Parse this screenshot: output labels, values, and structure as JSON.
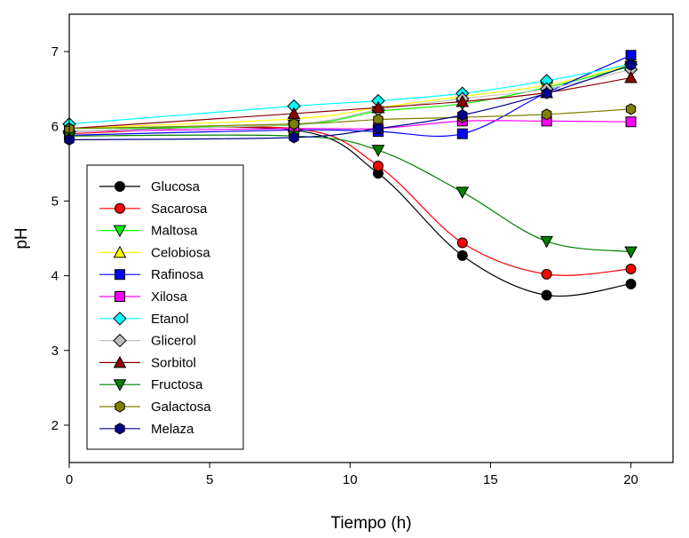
{
  "chart_data": {
    "type": "line",
    "xlabel": "Tiempo (h)",
    "ylabel": "pH",
    "xlim": [
      0,
      21.5
    ],
    "ylim": [
      1.5,
      7.5
    ],
    "xticks": [
      0,
      5,
      10,
      15,
      20
    ],
    "yticks": [
      2,
      3,
      4,
      5,
      6,
      7
    ],
    "grid": false,
    "legend_position": "bottom-left",
    "x": [
      0,
      8,
      11,
      14,
      17,
      20
    ],
    "series": [
      {
        "name": "Glucosa",
        "color": "#000000",
        "marker": "circle",
        "values": [
          5.93,
          5.95,
          5.37,
          4.27,
          3.74,
          3.89
        ]
      },
      {
        "name": "Sacarosa",
        "color": "#ff0000",
        "marker": "circle",
        "values": [
          5.9,
          5.97,
          5.47,
          4.44,
          4.02,
          4.09
        ]
      },
      {
        "name": "Maltosa",
        "color": "#00ff00",
        "marker": "triangle-down",
        "values": [
          5.97,
          6.02,
          6.2,
          6.3,
          6.52,
          6.8
        ]
      },
      {
        "name": "Celobiosa",
        "color": "#ffff00",
        "marker": "triangle-up",
        "values": [
          5.97,
          6.1,
          6.25,
          6.4,
          6.55,
          6.82
        ]
      },
      {
        "name": "Rafinosa",
        "color": "#0000ff",
        "marker": "square",
        "values": [
          5.88,
          5.95,
          5.93,
          5.9,
          6.45,
          6.95
        ]
      },
      {
        "name": "Xilosa",
        "color": "#ff00ff",
        "marker": "square",
        "values": [
          5.93,
          5.97,
          5.97,
          6.07,
          6.07,
          6.06
        ]
      },
      {
        "name": "Etanol",
        "color": "#00ffff",
        "marker": "diamond",
        "values": [
          6.03,
          6.27,
          6.34,
          6.44,
          6.61,
          6.83
        ]
      },
      {
        "name": "Glicerol",
        "color": "#c0c0c0",
        "marker": "diamond",
        "values": [
          5.93,
          6.03,
          6.22,
          6.37,
          6.5,
          6.76
        ]
      },
      {
        "name": "Sorbitol",
        "color": "#8b0000",
        "marker": "triangle-up",
        "values": [
          5.97,
          6.17,
          6.25,
          6.33,
          6.45,
          6.65
        ]
      },
      {
        "name": "Fructosa",
        "color": "#008000",
        "marker": "triangle-down",
        "values": [
          5.87,
          5.87,
          5.68,
          5.12,
          4.46,
          4.32
        ]
      },
      {
        "name": "Galactosa",
        "color": "#808000",
        "marker": "hexagon",
        "values": [
          5.97,
          6.03,
          6.09,
          6.12,
          6.16,
          6.23
        ]
      },
      {
        "name": "Melaza",
        "color": "#00008b",
        "marker": "hexagon",
        "values": [
          5.82,
          5.85,
          5.97,
          6.15,
          6.44,
          6.82
        ]
      }
    ]
  }
}
